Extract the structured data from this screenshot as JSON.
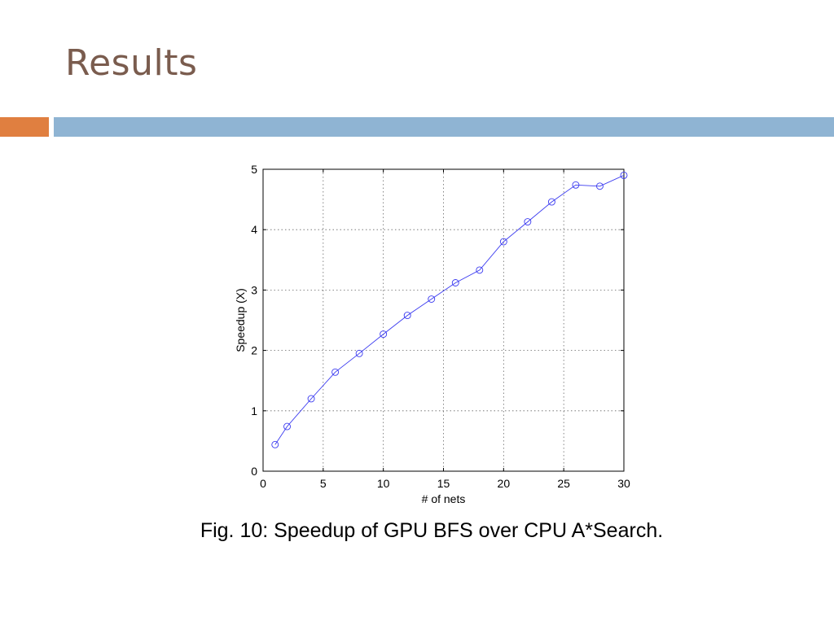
{
  "slide": {
    "title": "Results",
    "caption": "Fig. 10: Speedup of GPU BFS over CPU A*Search."
  },
  "colors": {
    "title": "#7a5c4e",
    "accent_bar": "#e07f40",
    "main_bar": "#8fb4d3",
    "series_line": "#3a3af0"
  },
  "chart_data": {
    "type": "line",
    "title": "",
    "xlabel": "# of nets",
    "ylabel": "Speedup (X)",
    "xlim": [
      0,
      30
    ],
    "ylim": [
      0,
      5
    ],
    "xticks": [
      0,
      5,
      10,
      15,
      20,
      25,
      30
    ],
    "yticks": [
      0,
      1,
      2,
      3,
      4,
      5
    ],
    "grid": true,
    "marker": "circle",
    "series": [
      {
        "x": [
          1,
          2,
          4,
          6,
          8,
          10,
          12,
          14,
          16,
          18,
          20,
          22,
          24,
          26,
          28,
          30
        ],
        "y": [
          0.44,
          0.74,
          1.2,
          1.64,
          1.95,
          2.27,
          2.58,
          2.85,
          3.12,
          3.33,
          3.8,
          4.13,
          4.46,
          4.74,
          4.72,
          4.9
        ]
      }
    ]
  }
}
